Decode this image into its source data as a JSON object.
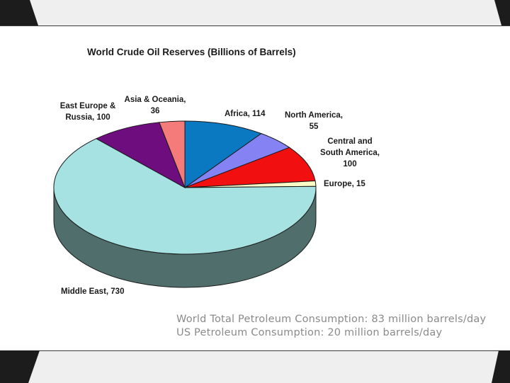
{
  "chart_data": {
    "type": "pie",
    "title": "World Crude Oil  Reserves (Billions of Barrels)",
    "slices": [
      {
        "name": "Africa",
        "value": 114,
        "color": "#0b78c2",
        "label_lines": [
          "Africa, 114"
        ]
      },
      {
        "name": "North America",
        "value": 55,
        "color": "#8583f4",
        "label_lines": [
          "North America,",
          "55"
        ]
      },
      {
        "name": "Central and South America",
        "value": 100,
        "color": "#f20f0f",
        "label_lines": [
          "Central and",
          "South America,",
          "100"
        ]
      },
      {
        "name": "Europe",
        "value": 15,
        "color": "#fbfbc8",
        "label_lines": [
          "Europe, 15"
        ]
      },
      {
        "name": "Middle East",
        "value": 730,
        "color": "#a6e2e2",
        "label_lines": [
          "Middle East, 730"
        ]
      },
      {
        "name": "East Europe & Russia",
        "value": 100,
        "color": "#6e0d7e",
        "label_lines": [
          "East Europe &",
          "Russia, 100"
        ]
      },
      {
        "name": "Asia & Oceania",
        "value": 36,
        "color": "#f57b7b",
        "label_lines": [
          "Asia & Oceania,",
          "36"
        ]
      }
    ],
    "side_color": "#4f6e6c",
    "style": "3d-pie"
  },
  "footnotes": {
    "line1": "World Total Petroleum Consumption: 83 million barrels/day",
    "line2": "US Petroleum Consumption: 20 million barrels/day"
  }
}
